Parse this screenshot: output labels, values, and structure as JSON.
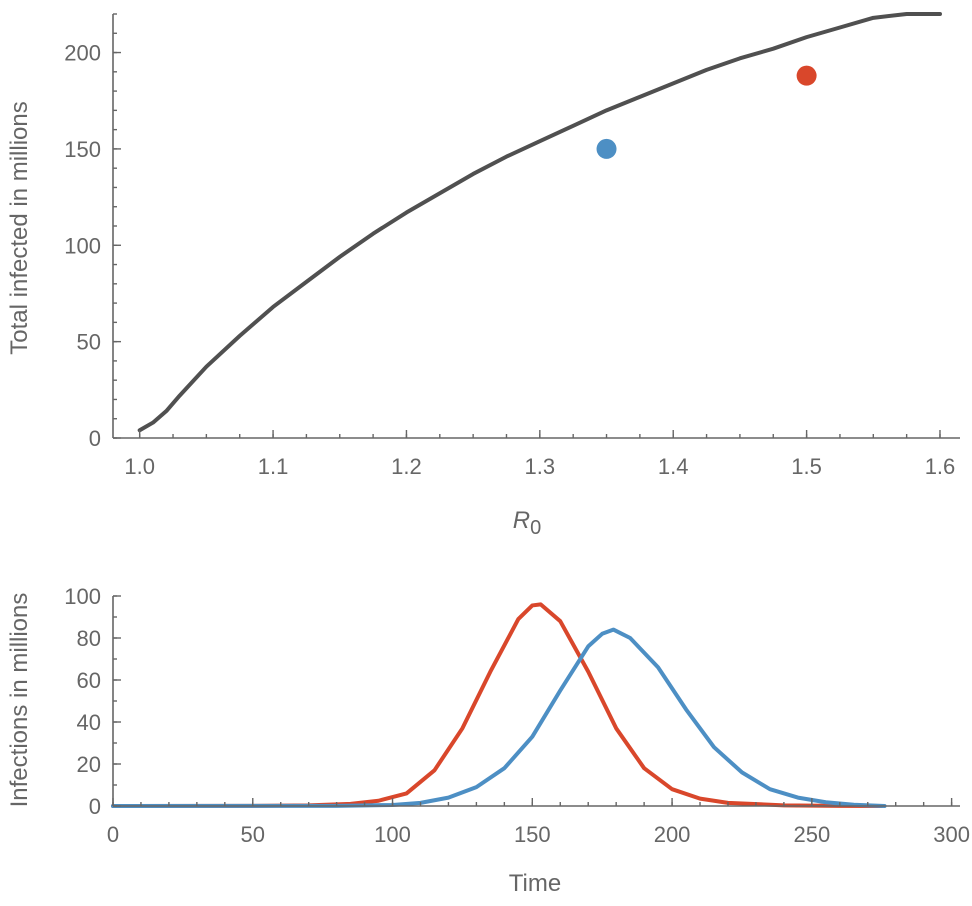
{
  "chart_data": [
    {
      "type": "line",
      "xlabel": "R",
      "xlabel_subscript": "0",
      "ylabel": "Total infected in millions",
      "xlim": [
        0.98,
        1.615
      ],
      "ylim": [
        0,
        220
      ],
      "x_ticks": [
        "1.0",
        "1.1",
        "1.2",
        "1.3",
        "1.4",
        "1.5",
        "1.6"
      ],
      "y_ticks": [
        "0",
        "50",
        "100",
        "150",
        "200"
      ],
      "grid": false,
      "series": [
        {
          "color": "#505050",
          "x": [
            1.0,
            1.01,
            1.02,
            1.03,
            1.05,
            1.075,
            1.1,
            1.125,
            1.15,
            1.175,
            1.2,
            1.225,
            1.25,
            1.275,
            1.3,
            1.325,
            1.35,
            1.375,
            1.4,
            1.425,
            1.45,
            1.475,
            1.5,
            1.525,
            1.55,
            1.575,
            1.6
          ],
          "y": [
            4,
            8,
            14,
            22,
            37,
            53,
            68,
            81,
            94,
            106,
            117,
            127,
            137,
            146,
            154,
            162,
            170,
            177,
            184,
            191,
            197,
            202,
            208,
            213,
            218,
            222,
            227
          ]
        }
      ],
      "points": [
        {
          "x": 1.35,
          "y": 150,
          "color": "#4d8fc4"
        },
        {
          "x": 1.5,
          "y": 188,
          "color": "#d9472b"
        }
      ]
    },
    {
      "type": "line",
      "xlabel": "Time",
      "ylabel": "Infections in millions",
      "xlim": [
        0,
        303
      ],
      "ylim": [
        0,
        100
      ],
      "x_ticks": [
        "0",
        "50",
        "100",
        "150",
        "200",
        "250",
        "300"
      ],
      "y_ticks": [
        "0",
        "20",
        "40",
        "60",
        "80",
        "100"
      ],
      "grid": false,
      "series": [
        {
          "color": "#d9472b",
          "x": [
            0,
            50,
            70,
            85,
            95,
            105,
            115,
            125,
            135,
            145,
            150,
            153,
            160,
            170,
            180,
            190,
            200,
            210,
            220,
            240,
            260,
            275
          ],
          "y": [
            0,
            0.05,
            0.3,
            1,
            2.5,
            6,
            17,
            37,
            64,
            89,
            95.5,
            96,
            88,
            64,
            37,
            18,
            8,
            3.5,
            1.5,
            0.3,
            0.05,
            0
          ]
        },
        {
          "color": "#4d8fc4",
          "x": [
            0,
            80,
            100,
            110,
            120,
            130,
            140,
            150,
            160,
            170,
            175,
            179,
            185,
            195,
            205,
            215,
            225,
            235,
            245,
            255,
            265,
            276
          ],
          "y": [
            0,
            0.05,
            0.5,
            1.5,
            4,
            9,
            18,
            33,
            55,
            76,
            82,
            84,
            80,
            66,
            46,
            28,
            16,
            8,
            4,
            1.8,
            0.6,
            0
          ]
        }
      ]
    }
  ]
}
